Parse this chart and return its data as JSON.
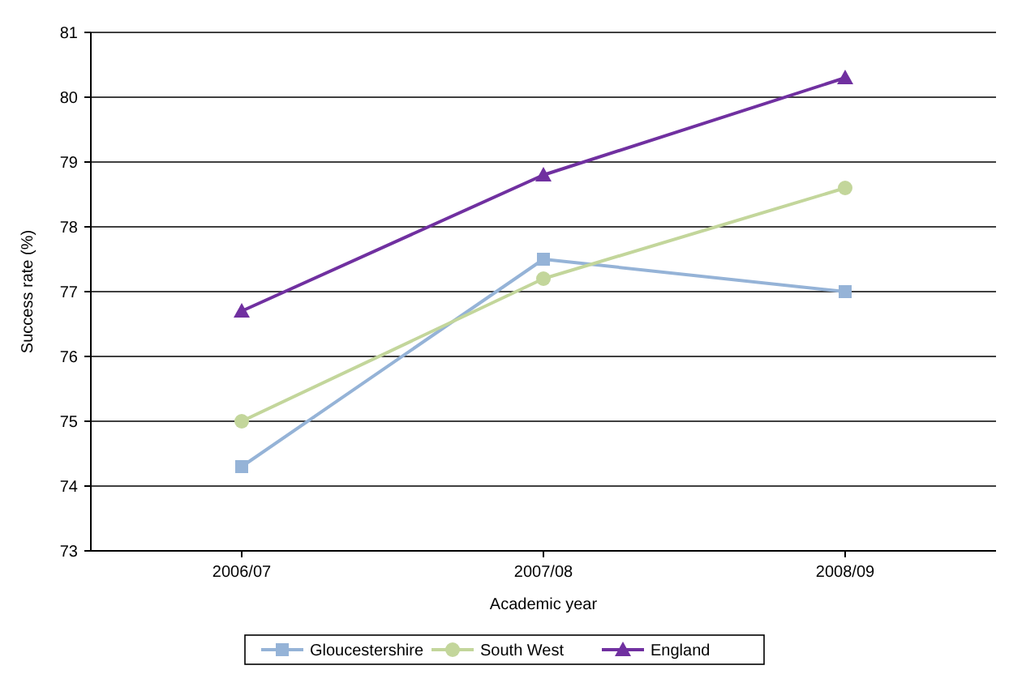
{
  "chart_data": {
    "type": "line",
    "xlabel": "Academic year",
    "ylabel": "Success rate (%)",
    "categories": [
      "2006/07",
      "2007/08",
      "2008/09"
    ],
    "series": [
      {
        "name": "Gloucestershire",
        "color": "#95b3d7",
        "marker": "square",
        "values": [
          74.3,
          77.5,
          77.0
        ]
      },
      {
        "name": "South West",
        "color": "#c3d69b",
        "marker": "circle",
        "values": [
          75.0,
          77.2,
          78.6
        ]
      },
      {
        "name": "England",
        "color": "#7030a0",
        "marker": "triangle",
        "values": [
          76.7,
          78.8,
          80.3
        ]
      }
    ],
    "ylim": [
      73,
      81
    ],
    "yticks": [
      73,
      74,
      75,
      76,
      77,
      78,
      79,
      80,
      81
    ],
    "grid": "y",
    "legend": "bottom",
    "line_style": "solid"
  }
}
